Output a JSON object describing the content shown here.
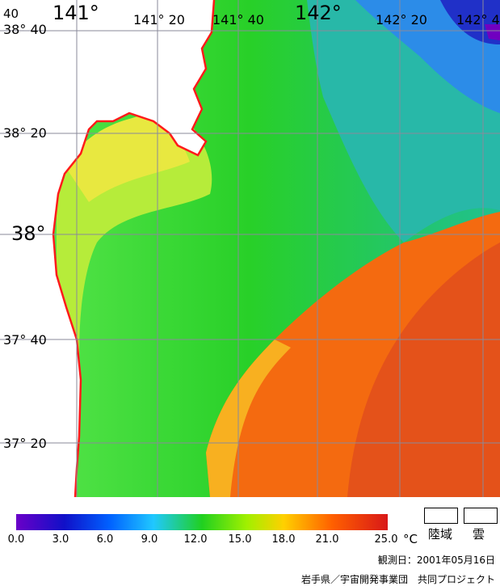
{
  "longitude_labels": [
    "141°",
    "141° 20",
    "141° 40",
    "142°",
    "142° 20",
    "142° 4"
  ],
  "latitude_labels": [
    "38° 40",
    "38° 20",
    "38°",
    "37° 40",
    "37° 20"
  ],
  "corner_label": "40",
  "colorbar": {
    "ticks": [
      "0.0",
      "3.0",
      "6.0",
      "9.0",
      "12.0",
      "15.0",
      "18.0",
      "21.0",
      "25.0"
    ],
    "unit": "°C",
    "colors": [
      "#6a00c8",
      "#1010c8",
      "#0060ff",
      "#20c8ff",
      "#20d020",
      "#a0f000",
      "#ffd000",
      "#ff6000",
      "#d81818"
    ]
  },
  "legend": {
    "land": "陸域",
    "cloud": "雲"
  },
  "observation_date": "観測日：2001年05月16日",
  "credit": "岩手県／宇宙開発事業団　共同プロジェクト",
  "colors": {
    "warm": "#f06010",
    "green": "#2ed42e",
    "coast": "#ff1a1a",
    "grid": "#8a8a9a"
  }
}
